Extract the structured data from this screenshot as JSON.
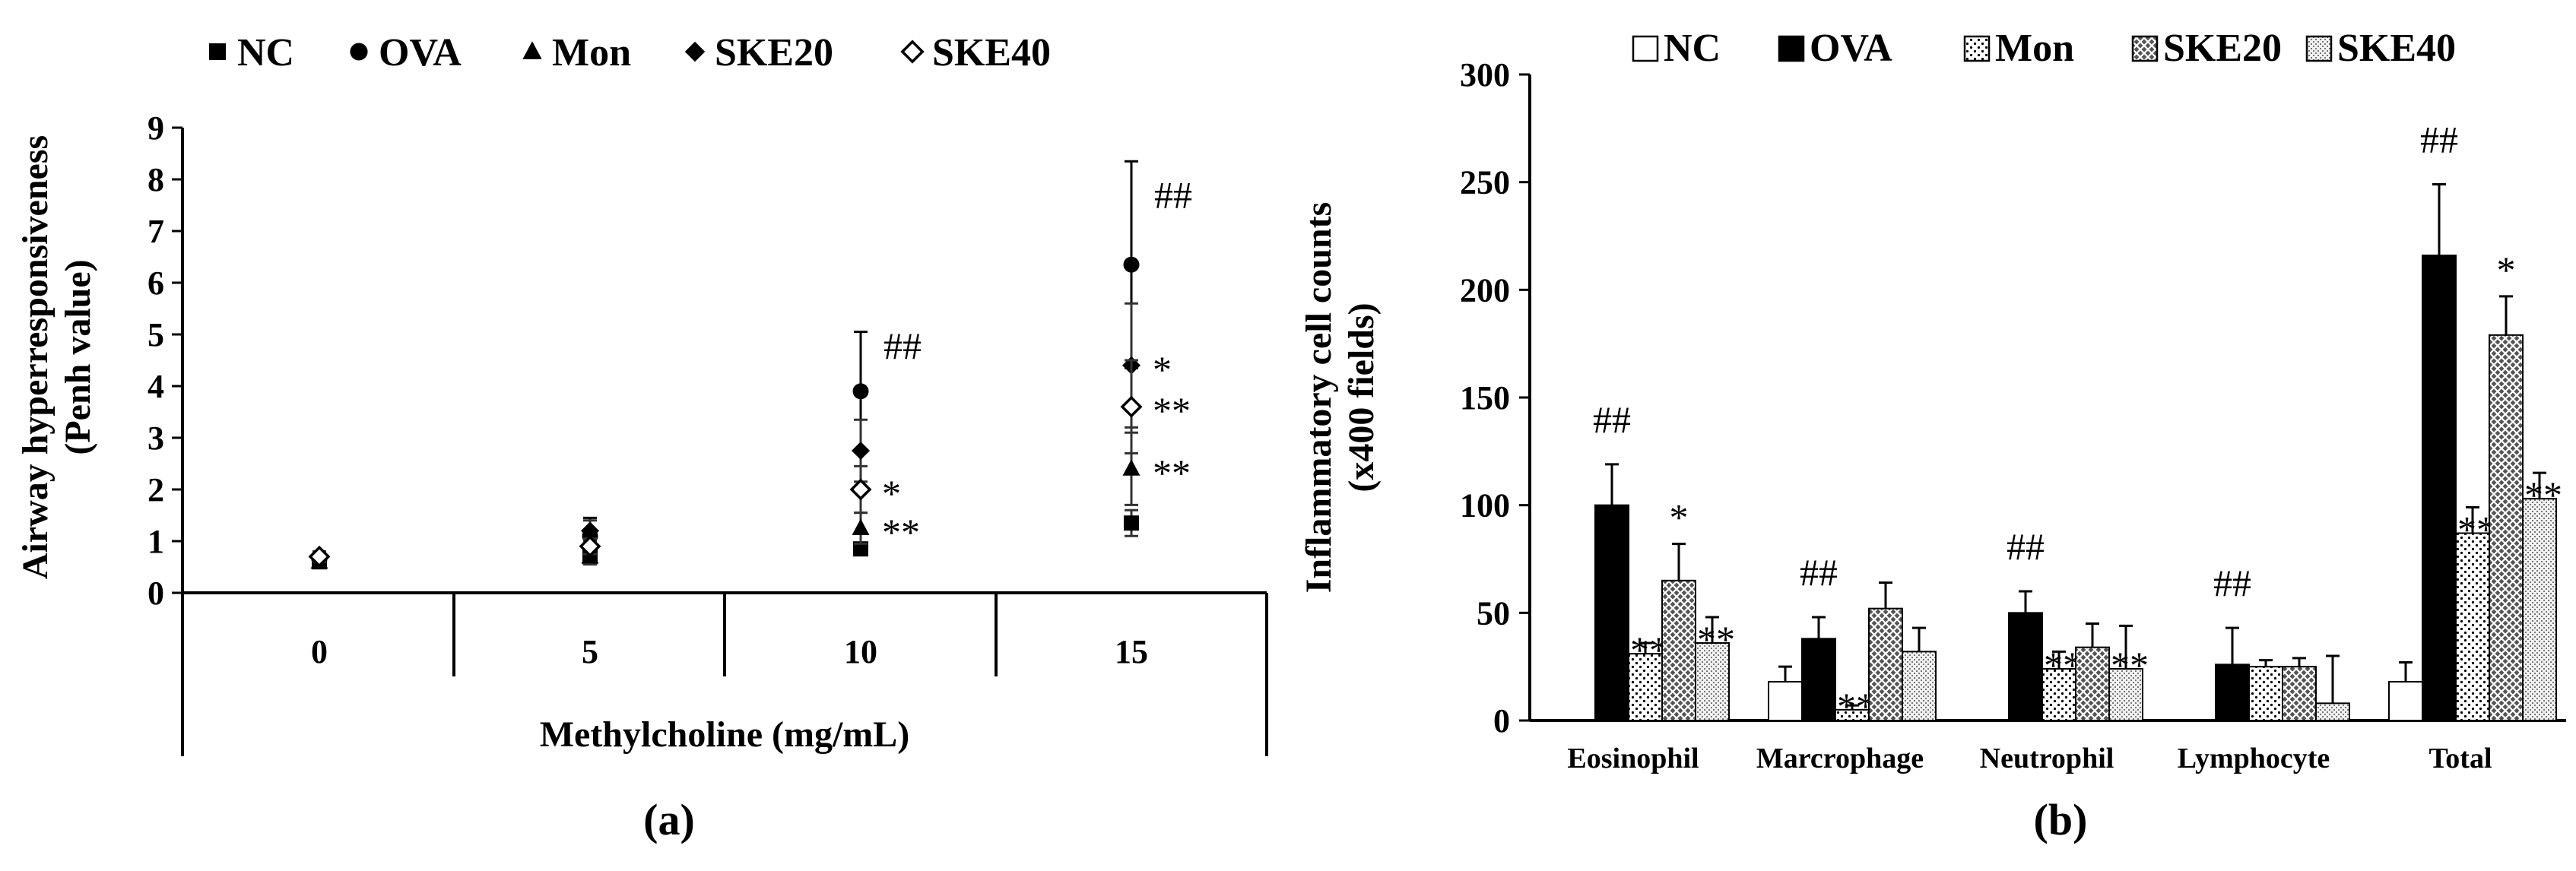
{
  "chart_data": [
    {
      "type": "scatter",
      "panel_label": "(a)",
      "xlabel": "Methylcholine (mg/mL)",
      "ylabel_line1": "Airway hyperresponsiveness",
      "ylabel_line2": "(Penh value)",
      "ylim": [
        0,
        9
      ],
      "categories": [
        "0",
        "5",
        "10",
        "15"
      ],
      "series": [
        {
          "name": "NC",
          "marker": "square",
          "values": [
            0.6,
            0.7,
            0.85,
            1.35
          ],
          "errors": [
            0.08,
            0.1,
            0.1,
            0.25
          ],
          "sig": [
            "",
            "",
            "",
            ""
          ]
        },
        {
          "name": "OVA",
          "marker": "circle",
          "values": [
            0.65,
            1.1,
            3.9,
            6.35
          ],
          "errors": [
            0.1,
            0.35,
            1.15,
            2.0
          ],
          "sig": [
            "",
            "",
            "##",
            "##"
          ]
        },
        {
          "name": "Mon",
          "marker": "triangle",
          "values": [
            0.6,
            0.7,
            1.25,
            2.4
          ],
          "errors": [
            0.08,
            0.15,
            0.3,
            0.7
          ],
          "sig": [
            "",
            "",
            "**",
            "**"
          ]
        },
        {
          "name": "SKE20",
          "marker": "diamond",
          "values": [
            0.7,
            1.2,
            2.75,
            4.4
          ],
          "errors": [
            0.1,
            0.2,
            0.6,
            1.2
          ],
          "sig": [
            "",
            "",
            "",
            "*"
          ]
        },
        {
          "name": "SKE40",
          "marker": "diamond-open",
          "values": [
            0.7,
            0.9,
            2.0,
            3.6
          ],
          "errors": [
            0.1,
            0.15,
            0.45,
            0.9
          ],
          "sig": [
            "",
            "",
            "*",
            "**"
          ]
        }
      ],
      "yticks": [
        "0",
        "1",
        "2",
        "3",
        "4",
        "5",
        "6",
        "7",
        "8",
        "9"
      ]
    },
    {
      "type": "bar",
      "panel_label": "(b)",
      "xlabel": "",
      "ylabel_line1": "Inflammatory cell counts",
      "ylabel_line2": "(x400 fields)",
      "ylim": [
        0,
        300
      ],
      "categories": [
        "Eosinophil",
        "Marcrophage",
        "Neutrophil",
        "Lymphocyte",
        "Total"
      ],
      "series": [
        {
          "name": "NC",
          "pattern": "white",
          "values": [
            0,
            18,
            0,
            0,
            18
          ],
          "errors": [
            0,
            7,
            0,
            0,
            9
          ],
          "sig": [
            "",
            "",
            "",
            "",
            ""
          ]
        },
        {
          "name": "OVA",
          "pattern": "black",
          "values": [
            100,
            38,
            50,
            26,
            216
          ],
          "errors": [
            19,
            10,
            10,
            17,
            33
          ],
          "sig": [
            "##",
            "##",
            "##",
            "##",
            "##"
          ]
        },
        {
          "name": "Mon",
          "pattern": "dots",
          "values": [
            31,
            5,
            24,
            25,
            87
          ],
          "errors": [
            5,
            2,
            8,
            3,
            12
          ],
          "sig": [
            "**",
            "**",
            "**",
            "",
            "**"
          ]
        },
        {
          "name": "SKE20",
          "pattern": "crosshatch",
          "values": [
            65,
            52,
            34,
            25,
            179
          ],
          "errors": [
            17,
            12,
            11,
            4,
            18
          ],
          "sig": [
            "*",
            "",
            "",
            "",
            "*"
          ]
        },
        {
          "name": "SKE40",
          "pattern": "fine",
          "values": [
            36,
            32,
            24,
            8,
            103
          ],
          "errors": [
            12,
            11,
            20,
            22,
            12
          ],
          "sig": [
            "**",
            "",
            "**",
            "",
            "**"
          ]
        }
      ],
      "yticks": [
        "0",
        "50",
        "100",
        "150",
        "200",
        "250",
        "300"
      ]
    }
  ]
}
